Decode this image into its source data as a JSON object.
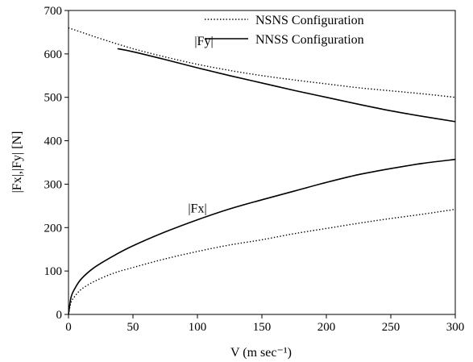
{
  "chart_data": {
    "type": "line",
    "xlabel": "V (m sec⁻¹)",
    "ylabel": "|Fx|,|Fy| [N]",
    "xlim": [
      0,
      300
    ],
    "ylim": [
      0,
      700
    ],
    "xticks": [
      0,
      50,
      100,
      150,
      200,
      250,
      300
    ],
    "yticks": [
      0,
      100,
      200,
      300,
      400,
      500,
      600,
      700
    ],
    "grid": false,
    "legend_position": "top-right",
    "legend": [
      {
        "label": "NSNS Configuration",
        "style": "dotted"
      },
      {
        "label": "NNSS Configuration",
        "style": "solid"
      }
    ],
    "annotations": [
      {
        "text": "|Fy|",
        "x": 105,
        "y": 620
      },
      {
        "text": "|Fx|",
        "x": 100,
        "y": 235
      }
    ],
    "series": [
      {
        "quantity": "|Fy|",
        "configuration": "NSNS Configuration",
        "style": "dotted",
        "x": [
          0,
          10,
          25,
          50,
          75,
          100,
          125,
          150,
          175,
          200,
          225,
          250,
          275,
          300
        ],
        "y": [
          660,
          650,
          635,
          612,
          593,
          576,
          562,
          550,
          540,
          531,
          522,
          515,
          508,
          500
        ]
      },
      {
        "quantity": "|Fy|",
        "configuration": "NNSS Configuration",
        "style": "solid",
        "x": [
          38,
          50,
          75,
          100,
          125,
          150,
          175,
          200,
          225,
          250,
          275,
          300
        ],
        "y": [
          612,
          605,
          587,
          568,
          550,
          533,
          516,
          500,
          484,
          469,
          456,
          444
        ]
      },
      {
        "quantity": "|Fx|",
        "configuration": "NSNS Configuration",
        "style": "dotted",
        "x": [
          0,
          2,
          5,
          10,
          20,
          35,
          50,
          75,
          100,
          125,
          150,
          175,
          200,
          225,
          250,
          275,
          300
        ],
        "y": [
          0,
          28,
          42,
          58,
          76,
          95,
          108,
          128,
          145,
          160,
          172,
          186,
          198,
          210,
          221,
          231,
          242
        ]
      },
      {
        "quantity": "|Fx|",
        "configuration": "NNSS Configuration",
        "style": "solid",
        "x": [
          0,
          2,
          5,
          10,
          20,
          35,
          50,
          75,
          100,
          125,
          150,
          175,
          200,
          225,
          250,
          275,
          300
        ],
        "y": [
          0,
          40,
          60,
          82,
          108,
          135,
          158,
          190,
          218,
          243,
          264,
          284,
          304,
          322,
          336,
          348,
          357
        ]
      }
    ]
  }
}
